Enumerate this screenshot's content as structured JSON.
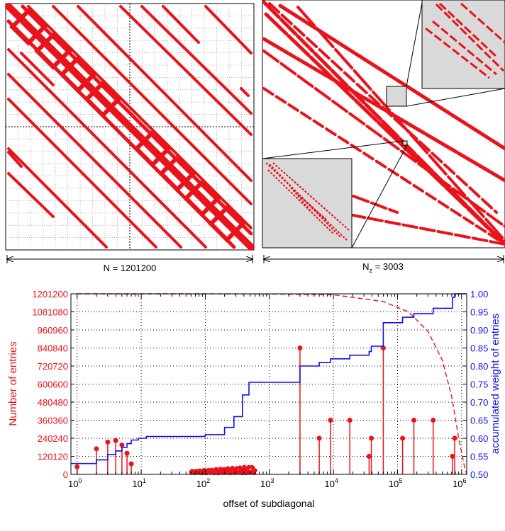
{
  "figure": {
    "panel_a": {
      "caption": "N = 1201200"
    },
    "panel_b": {
      "caption_main": "N",
      "caption_sub": "z",
      "caption_rest": " = 3003"
    }
  },
  "colors": {
    "red": "#e8131b",
    "blue": "#1010e6",
    "grey": "#d9d9d9"
  },
  "chart_data": {
    "type": "scatter",
    "x_scale": "log",
    "xlabel": "offset of subdiagonal",
    "ylabel_left": "Number of entries",
    "ylabel_right": "accumulated weight of entries",
    "xlim": [
      0.8,
      1201200
    ],
    "ylim_left": [
      0,
      1201200
    ],
    "ylim_right": [
      0.5,
      1.0
    ],
    "x_ticks": [
      {
        "base": "10",
        "exp": "0"
      },
      {
        "base": "10",
        "exp": "1"
      },
      {
        "base": "10",
        "exp": "2"
      },
      {
        "base": "10",
        "exp": "3"
      },
      {
        "base": "10",
        "exp": "4"
      },
      {
        "base": "10",
        "exp": "5"
      },
      {
        "base": "10",
        "exp": "6"
      }
    ],
    "y_ticks_left": [
      "0",
      "120120",
      "240240",
      "360360",
      "480480",
      "600600",
      "720720",
      "840840",
      "960960",
      "1081080",
      "1201200"
    ],
    "y_ticks_right": [
      "0.50",
      "0.55",
      "0.60",
      "0.65",
      "0.70",
      "0.75",
      "0.80",
      "0.85",
      "0.90",
      "0.95",
      "1.00"
    ],
    "grid": true,
    "series": [
      {
        "kind": "stem",
        "points": [
          [
            1,
            50000
          ],
          [
            2,
            170000
          ],
          [
            3,
            215000
          ],
          [
            4,
            225000
          ],
          [
            5,
            195000
          ],
          [
            6,
            140000
          ],
          [
            7,
            70000
          ],
          [
            3003,
            840840
          ],
          [
            6000,
            240240
          ],
          [
            9000,
            360360
          ],
          [
            18000,
            360360
          ],
          [
            36000,
            120120
          ],
          [
            39000,
            240240
          ],
          [
            60000,
            840840
          ],
          [
            120000,
            240240
          ],
          [
            180000,
            360360
          ],
          [
            360000,
            360360
          ],
          [
            720000,
            120120
          ],
          [
            780000,
            240240
          ]
        ]
      },
      {
        "kind": "dense-stem",
        "x_range": [
          60,
          600
        ],
        "y_range": [
          8000,
          55000
        ]
      },
      {
        "kind": "curve-dashed",
        "points": [
          [
            1,
            1201200
          ],
          [
            100,
            1201000
          ],
          [
            1000,
            1200000
          ],
          [
            10000,
            1195000
          ],
          [
            60000,
            1150000
          ],
          [
            150000,
            1080000
          ],
          [
            300000,
            950000
          ],
          [
            500000,
            760000
          ],
          [
            700000,
            520000
          ],
          [
            900000,
            240000
          ],
          [
            1100000,
            60000
          ],
          [
            1201200,
            0
          ]
        ]
      },
      {
        "kind": "step",
        "points": [
          [
            0.8,
            0.53
          ],
          [
            2,
            0.54
          ],
          [
            3,
            0.555
          ],
          [
            4,
            0.565
          ],
          [
            5,
            0.575
          ],
          [
            6,
            0.585
          ],
          [
            7,
            0.595
          ],
          [
            9,
            0.6
          ],
          [
            12,
            0.605
          ],
          [
            60,
            0.605
          ],
          [
            100,
            0.61
          ],
          [
            200,
            0.63
          ],
          [
            280,
            0.66
          ],
          [
            380,
            0.72
          ],
          [
            480,
            0.755
          ],
          [
            600,
            0.755
          ],
          [
            3003,
            0.755
          ],
          [
            3003,
            0.8
          ],
          [
            6000,
            0.81
          ],
          [
            9000,
            0.82
          ],
          [
            18000,
            0.83
          ],
          [
            36000,
            0.84
          ],
          [
            39000,
            0.855
          ],
          [
            60000,
            0.87
          ],
          [
            60000,
            0.92
          ],
          [
            120000,
            0.935
          ],
          [
            180000,
            0.945
          ],
          [
            360000,
            0.96
          ],
          [
            720000,
            0.99
          ],
          [
            780000,
            1.0
          ],
          [
            1201200,
            1.0
          ]
        ]
      }
    ]
  }
}
